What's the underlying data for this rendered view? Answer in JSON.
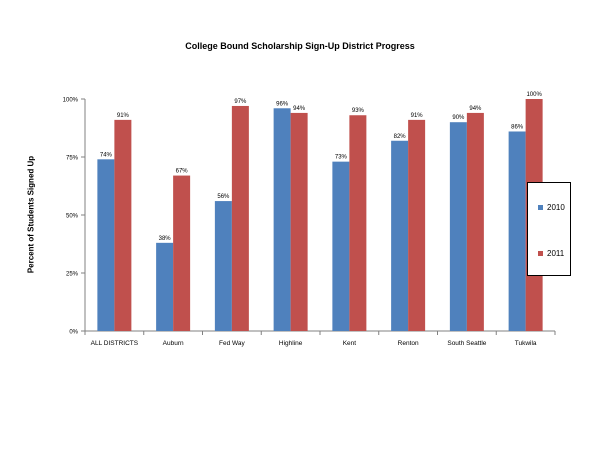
{
  "chart_data": {
    "type": "bar",
    "title": "College Bound Scholarship Sign-Up District Progress",
    "xlabel": "",
    "ylabel": "Percent of Students Signed Up",
    "ylim": [
      0,
      100
    ],
    "yticks": [
      0,
      25,
      50,
      75,
      100
    ],
    "ytick_labels": [
      "0%",
      "25%",
      "50%",
      "75%",
      "100%"
    ],
    "categories": [
      "ALL DISTRICTS",
      "Auburn",
      "Fed Way",
      "Highline",
      "Kent",
      "Renton",
      "South Seattle",
      "Tukwila"
    ],
    "series": [
      {
        "name": "2010",
        "color": "#4F81BD",
        "values": [
          74,
          38,
          56,
          96,
          73,
          82,
          90,
          86
        ],
        "labels": [
          "74%",
          "38%",
          "56%",
          "96%",
          "73%",
          "82%",
          "90%",
          "86%"
        ]
      },
      {
        "name": "2011",
        "color": "#C0504D",
        "values": [
          91,
          67,
          97,
          94,
          93,
          91,
          94,
          100
        ],
        "labels": [
          "91%",
          "67%",
          "97%",
          "94%",
          "93%",
          "91%",
          "94%",
          "100%"
        ]
      }
    ],
    "legend_position": "right",
    "grid": false
  }
}
